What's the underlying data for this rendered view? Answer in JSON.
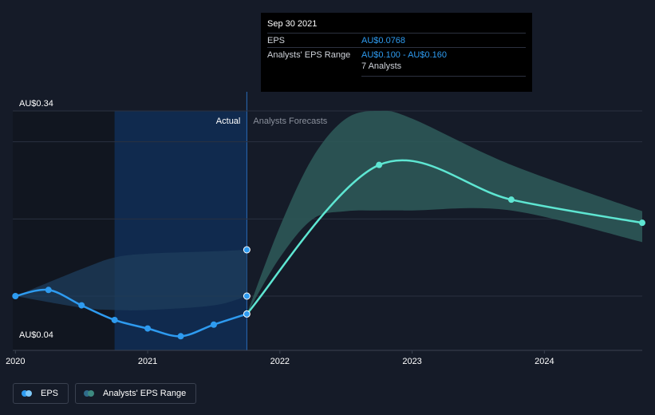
{
  "tooltip": {
    "date": "Sep 30 2021",
    "rows": [
      {
        "key": "EPS",
        "value": "AU$0.0768"
      },
      {
        "key": "Analysts' EPS Range",
        "value": "AU$0.100 - AU$0.160"
      }
    ],
    "analysts": "7 Analysts"
  },
  "sections": {
    "actual": "Actual",
    "forecast": "Analysts Forecasts"
  },
  "legend": [
    {
      "label": "EPS",
      "color_a": "#2e9bf0",
      "color_b": "#7ec8f8"
    },
    {
      "label": "Analysts' EPS Range",
      "color_a": "#2f6b8a",
      "color_b": "#3d8a80"
    }
  ],
  "colors": {
    "background": "#151b28",
    "past_shade": "#111620",
    "actual_band": "#0f2d55",
    "eps_line": "#2e9bf0",
    "forecast_line": "#5ee6d2",
    "forecast_range": "#2c5857",
    "past_range": "#1d3d5c"
  },
  "chart_data": {
    "type": "line",
    "x_ticks": [
      "2020",
      "2021",
      "2022",
      "2023",
      "2024"
    ],
    "x_tick_values": [
      2020.0,
      2021.0,
      2022.0,
      2023.0,
      2024.0
    ],
    "xlim": [
      2019.98,
      2024.74
    ],
    "ylim": [
      0.04,
      0.34
    ],
    "y_ticks": [
      {
        "value": 0.34,
        "label": "AU$0.34"
      },
      {
        "value": 0.04,
        "label": "AU$0.04"
      }
    ],
    "gridlines": [
      0.34,
      0.3,
      0.2,
      0.1
    ],
    "past_shade_range": [
      2019.98,
      2020.75
    ],
    "actual_band_range": [
      2020.75,
      2021.75
    ],
    "series": [
      {
        "name": "EPS",
        "kind": "actual",
        "x": [
          2020.0,
          2020.25,
          2020.5,
          2020.75,
          2021.0,
          2021.25,
          2021.5,
          2021.75
        ],
        "y": [
          0.1,
          0.108,
          0.088,
          0.069,
          0.058,
          0.048,
          0.063,
          0.0768
        ]
      },
      {
        "name": "EPS Forecast",
        "kind": "forecast",
        "x": [
          2021.75,
          2022.75,
          2023.75,
          2024.74
        ],
        "y": [
          0.0768,
          0.27,
          0.225,
          0.195
        ]
      }
    ],
    "past_range": {
      "x": [
        2020.0,
        2020.5,
        2020.75,
        2021.0,
        2021.5,
        2021.75
      ],
      "low": [
        0.1,
        0.085,
        0.082,
        0.082,
        0.088,
        0.1
      ],
      "high": [
        0.1,
        0.135,
        0.15,
        0.155,
        0.158,
        0.16
      ]
    },
    "forecast_range": {
      "x": [
        2021.75,
        2022.0,
        2022.25,
        2022.5,
        2022.75,
        2023.0,
        2023.75,
        2024.74
      ],
      "low": [
        0.0768,
        0.15,
        0.2,
        0.21,
        0.211,
        0.211,
        0.211,
        0.17
      ],
      "high": [
        0.0768,
        0.19,
        0.28,
        0.33,
        0.34,
        0.33,
        0.27,
        0.21
      ]
    },
    "tooltip_x": 2021.75,
    "tooltip_points": [
      0.16,
      0.1,
      0.0768
    ]
  }
}
